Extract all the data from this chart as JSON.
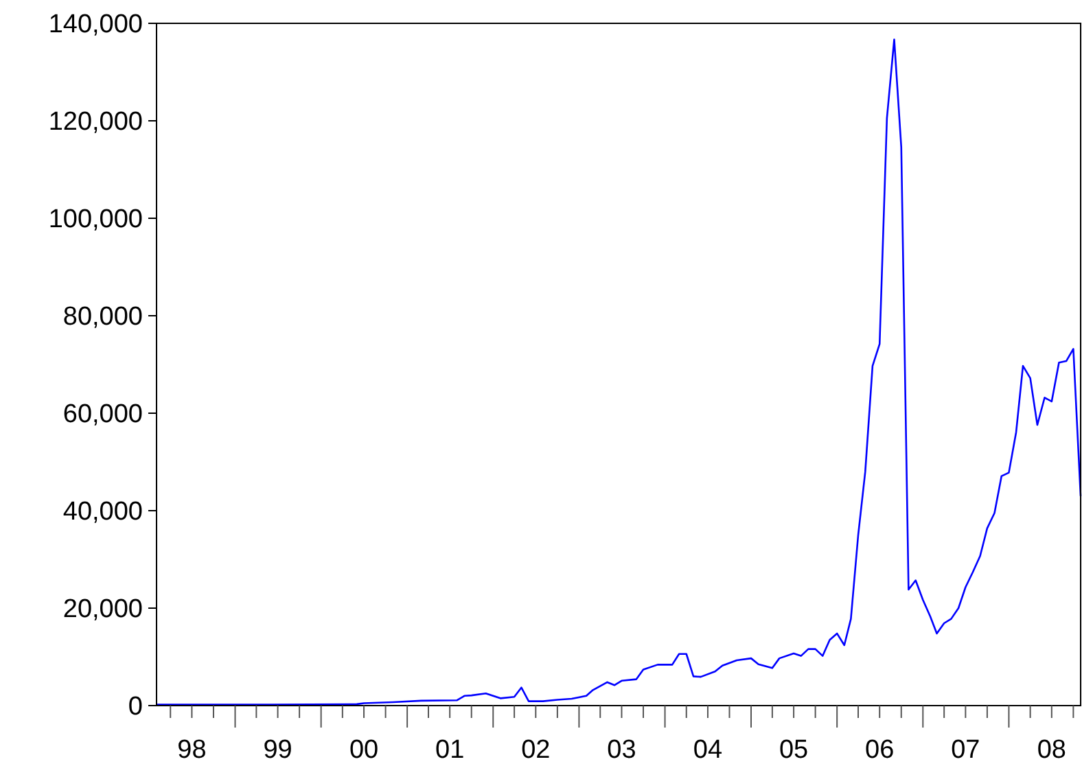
{
  "chart_data": {
    "type": "line",
    "xlim": [
      "1998-02",
      "2008-11"
    ],
    "ylim": [
      0,
      140000
    ],
    "yticks": [
      0,
      {
        "value": 20000,
        "label": "20,000"
      },
      {
        "value": 40000,
        "label": "40,000"
      },
      {
        "value": 60000,
        "label": "60,000"
      },
      {
        "value": 80000,
        "label": "80,000"
      },
      {
        "value": 100000,
        "label": "100,000"
      },
      {
        "value": 120000,
        "label": "120,000"
      },
      {
        "value": 140000,
        "label": "140,000"
      }
    ],
    "xticks": [
      {
        "value": "1998-04",
        "label": null
      },
      {
        "value": "1998-07",
        "label": "98"
      },
      {
        "value": "1998-10",
        "label": null
      },
      {
        "value": "1999-01",
        "label": null
      },
      {
        "value": "1999-04",
        "label": null
      },
      {
        "value": "1999-07",
        "label": "99"
      },
      {
        "value": "1999-10",
        "label": null
      },
      {
        "value": "2000-01",
        "label": null
      },
      {
        "value": "2000-04",
        "label": null
      },
      {
        "value": "2000-07",
        "label": "00"
      },
      {
        "value": "2000-10",
        "label": null
      },
      {
        "value": "2001-01",
        "label": null
      },
      {
        "value": "2001-04",
        "label": null
      },
      {
        "value": "2001-07",
        "label": "01"
      },
      {
        "value": "2001-10",
        "label": null
      },
      {
        "value": "2002-01",
        "label": null
      },
      {
        "value": "2002-04",
        "label": null
      },
      {
        "value": "2002-07",
        "label": "02"
      },
      {
        "value": "2002-10",
        "label": null
      },
      {
        "value": "2003-01",
        "label": null
      },
      {
        "value": "2003-04",
        "label": null
      },
      {
        "value": "2003-07",
        "label": "03"
      },
      {
        "value": "2003-10",
        "label": null
      },
      {
        "value": "2004-01",
        "label": null
      },
      {
        "value": "2004-04",
        "label": null
      },
      {
        "value": "2004-07",
        "label": "04"
      },
      {
        "value": "2004-10",
        "label": null
      },
      {
        "value": "2005-01",
        "label": null
      },
      {
        "value": "2005-04",
        "label": null
      },
      {
        "value": "2005-07",
        "label": "05"
      },
      {
        "value": "2005-10",
        "label": null
      },
      {
        "value": "2006-01",
        "label": null
      },
      {
        "value": "2006-04",
        "label": null
      },
      {
        "value": "2006-07",
        "label": "06"
      },
      {
        "value": "2006-10",
        "label": null
      },
      {
        "value": "2007-01",
        "label": null
      },
      {
        "value": "2007-04",
        "label": null
      },
      {
        "value": "2007-07",
        "label": "07"
      },
      {
        "value": "2007-10",
        "label": null
      },
      {
        "value": "2008-01",
        "label": null
      },
      {
        "value": "2008-04",
        "label": null
      },
      {
        "value": "2008-07",
        "label": "08"
      },
      {
        "value": "2008-10",
        "label": null
      }
    ],
    "x": [
      "1998-02",
      "1999-06",
      "2000-06",
      "2000-07",
      "2000-11",
      "2001-03",
      "2001-08",
      "2001-09",
      "2001-10",
      "2001-12",
      "2002-02",
      "2002-04",
      "2002-05",
      "2002-06",
      "2002-08",
      "2002-10",
      "2002-12",
      "2003-02",
      "2003-03",
      "2003-05",
      "2003-06",
      "2003-07",
      "2003-09",
      "2003-10",
      "2003-12",
      "2004-02",
      "2004-03",
      "2004-04",
      "2004-05",
      "2004-06",
      "2004-08",
      "2004-09",
      "2004-11",
      "2005-01",
      "2005-02",
      "2005-04",
      "2005-05",
      "2005-07",
      "2005-08",
      "2005-09",
      "2005-10",
      "2005-11",
      "2005-12",
      "2006-01",
      "2006-02",
      "2006-03",
      "2006-04",
      "2006-05",
      "2006-06",
      "2006-07",
      "2006-08",
      "2006-09",
      "2006-10",
      "2006-11",
      "2006-12",
      "2007-01",
      "2007-02",
      "2007-03",
      "2007-04",
      "2007-05",
      "2007-06",
      "2007-07",
      "2007-08",
      "2007-09",
      "2007-10",
      "2007-11",
      "2007-12",
      "2008-01",
      "2008-02",
      "2008-03",
      "2008-04",
      "2008-05",
      "2008-06",
      "2008-07",
      "2008-08",
      "2008-09",
      "2008-10",
      "2008-11"
    ],
    "series": [
      {
        "color": "#0000ff",
        "values": [
          200,
          200,
          300,
          500,
          700,
          1000,
          1100,
          2000,
          2100,
          2500,
          1500,
          1800,
          3700,
          900,
          900,
          1200,
          1400,
          2000,
          3200,
          4800,
          4200,
          5100,
          5400,
          7400,
          8400,
          8400,
          10600,
          10600,
          6000,
          5900,
          7000,
          8200,
          9300,
          9700,
          8500,
          7700,
          9700,
          10700,
          10200,
          11600,
          11600,
          10200,
          13500,
          14800,
          12400,
          17800,
          35000,
          48000,
          69700,
          74200,
          120500,
          136700,
          114600,
          23800,
          25700,
          21700,
          18300,
          14800,
          16900,
          17800,
          20000,
          24300,
          27400,
          30700,
          36400,
          39500,
          47100,
          47800,
          56100,
          69700,
          67200,
          57600,
          63200,
          62400,
          70400,
          70700,
          73200,
          43000
        ]
      }
    ],
    "marker": "none",
    "line_style": "solid"
  }
}
